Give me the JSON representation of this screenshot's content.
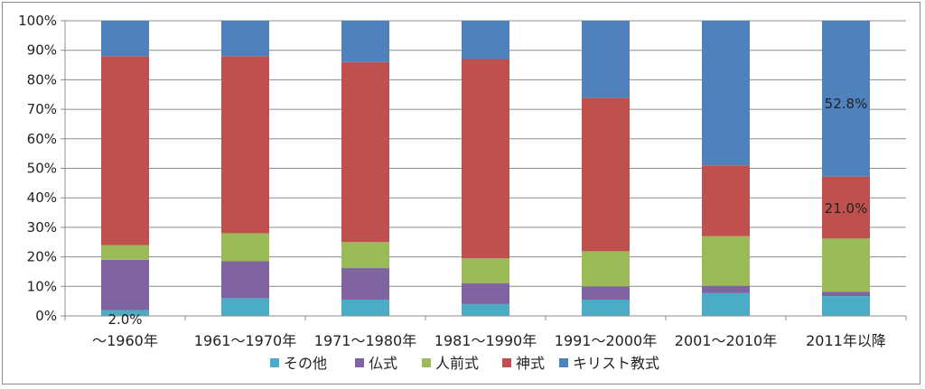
{
  "chart_data": {
    "type": "bar",
    "stacked": "percent",
    "grid": true,
    "legend_position": "bottom",
    "ylim": [
      0,
      100
    ],
    "y_ticks": [
      "0%",
      "10%",
      "20%",
      "30%",
      "40%",
      "50%",
      "60%",
      "70%",
      "80%",
      "90%",
      "100%"
    ],
    "categories": [
      "～1960年",
      "1961～1970年",
      "1971～1980年",
      "1981～1990年",
      "1991～2000年",
      "2001～2010年",
      "2011年以降"
    ],
    "series": [
      {
        "name": "その他",
        "color": "#4bacc6",
        "values": [
          2.0,
          6.0,
          5.5,
          4.0,
          5.5,
          7.7,
          6.7
        ]
      },
      {
        "name": "仏式",
        "color": "#8064a2",
        "values": [
          17.0,
          12.5,
          10.7,
          7.1,
          4.5,
          2.5,
          1.5
        ]
      },
      {
        "name": "人前式",
        "color": "#9bbb59",
        "values": [
          5.0,
          9.5,
          8.8,
          8.4,
          11.9,
          16.8,
          18.0
        ]
      },
      {
        "name": "神式",
        "color": "#c0504d",
        "values": [
          64.0,
          60.0,
          61.0,
          67.5,
          52.0,
          24.0,
          21.0
        ]
      },
      {
        "name": "キリスト教式",
        "color": "#4f81bd",
        "values": [
          12.0,
          12.0,
          14.0,
          13.0,
          26.1,
          49.0,
          52.8
        ]
      }
    ],
    "data_labels": [
      {
        "category": "～1960年",
        "series": "その他",
        "text": "2.0%"
      },
      {
        "category": "2011年以降",
        "series": "神式",
        "text": "21.0%"
      },
      {
        "category": "2011年以降",
        "series": "キリスト教式",
        "text": "52.8%"
      }
    ]
  }
}
